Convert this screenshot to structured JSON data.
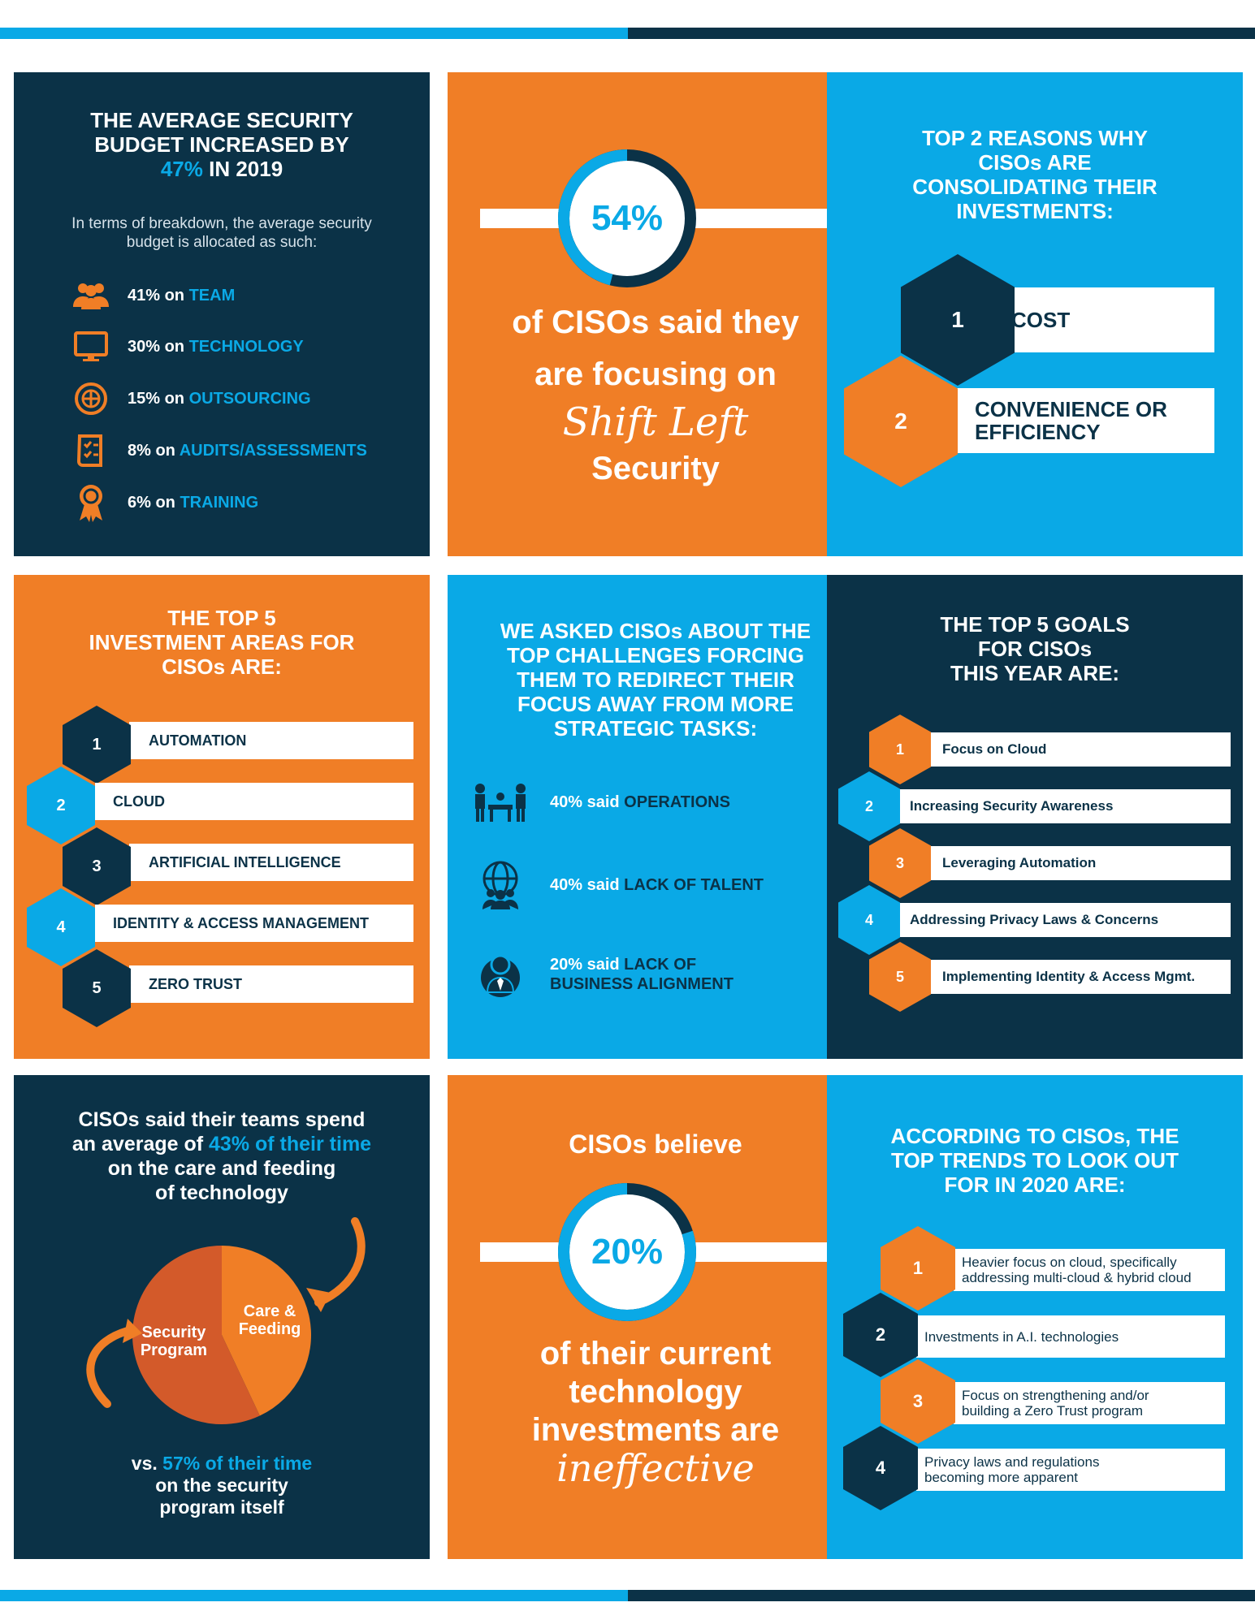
{
  "colors": {
    "navy": "#0b3247",
    "orange": "#f07e26",
    "blue": "#0aa9e6",
    "white": "#ffffff"
  },
  "budget": {
    "title_line1": "THE AVERAGE SECURITY",
    "title_line2": "BUDGET INCREASED BY",
    "title_pct": "47%",
    "title_year": "IN 2019",
    "subtitle": "In terms of breakdown, the average security budget is allocated as such:",
    "items": [
      {
        "icon": "team-icon",
        "pct": "41% on",
        "label": "TEAM"
      },
      {
        "icon": "monitor-icon",
        "pct": "30% on",
        "label": "TECHNOLOGY"
      },
      {
        "icon": "globe-outsourcing-icon",
        "pct": "15% on",
        "label": "OUTSOURCING"
      },
      {
        "icon": "checklist-icon",
        "pct": "8% on",
        "label": "AUDITS/ASSESSMENTS"
      },
      {
        "icon": "award-ribbon-icon",
        "pct": "6% on",
        "label": "TRAINING"
      }
    ]
  },
  "shift_left": {
    "value": 54,
    "stat": "54%",
    "line1": "of CISOs said they",
    "line2": "are focusing on",
    "script": "Shift Left",
    "line3": "Security"
  },
  "reasons": {
    "title": [
      "TOP 2 REASONS WHY",
      "CISOs ARE",
      "CONSOLIDATING THEIR",
      "INVESTMENTS:"
    ],
    "items": [
      {
        "num": "1",
        "label": "COST"
      },
      {
        "num": "2",
        "label_line1": "CONVENIENCE OR",
        "label_line2": "EFFICIENCY"
      }
    ]
  },
  "investment": {
    "title": [
      "THE TOP 5",
      "INVESTMENT AREAS FOR",
      "CISOs ARE:"
    ],
    "items": [
      {
        "num": "1",
        "label": "AUTOMATION"
      },
      {
        "num": "2",
        "label": "CLOUD"
      },
      {
        "num": "3",
        "label": "ARTIFICIAL INTELLIGENCE"
      },
      {
        "num": "4",
        "label": "IDENTITY & ACCESS MANAGEMENT"
      },
      {
        "num": "5",
        "label": "ZERO TRUST"
      }
    ]
  },
  "challenges": {
    "title": [
      "WE ASKED CISOs ABOUT THE",
      "TOP CHALLENGES FORCING",
      "THEM TO REDIRECT THEIR",
      "FOCUS AWAY FROM MORE",
      "STRATEGIC TASKS:"
    ],
    "items": [
      {
        "icon": "meeting-icon",
        "pct": "40% said",
        "label": "OPERATIONS"
      },
      {
        "icon": "global-team-icon",
        "pct": "40% said",
        "label": "LACK OF TALENT"
      },
      {
        "icon": "businessman-icon",
        "pct": "20% said",
        "label": "LACK OF",
        "label2": "BUSINESS ALIGNMENT"
      }
    ]
  },
  "goals": {
    "title": [
      "THE TOP 5 GOALS",
      "FOR CISOs",
      "THIS YEAR ARE:"
    ],
    "items": [
      {
        "num": "1",
        "label": "Focus on Cloud"
      },
      {
        "num": "2",
        "label": "Increasing Security Awareness"
      },
      {
        "num": "3",
        "label": "Leveraging Automation"
      },
      {
        "num": "4",
        "label": "Addressing Privacy Laws & Concerns"
      },
      {
        "num": "5",
        "label": "Implementing Identity & Access Mgmt."
      }
    ]
  },
  "time": {
    "title_line1": "CISOs said their teams spend",
    "title_line2_pre": "an average of",
    "title_line2_hl": "43% of their time",
    "title_line3": "on the care and feeding",
    "title_line4": "of technology",
    "bottom_pre": "vs.",
    "bottom_hl": "57% of their time",
    "bottom_line2": "on the security",
    "bottom_line3": "program itself",
    "chart_data": {
      "type": "pie",
      "categories": [
        "Care & Feeding",
        "Security Program"
      ],
      "values": [
        43,
        57
      ],
      "colors": [
        "#f07e26",
        "#d35a2a"
      ],
      "title": "",
      "xlabel": "",
      "ylabel": ""
    }
  },
  "ineffective": {
    "value": 20,
    "top": "CISOs believe",
    "stat": "20%",
    "line1": "of their current",
    "line2": "technology",
    "line3": "investments are",
    "script": "ineffective"
  },
  "trends": {
    "title": [
      "ACCORDING TO CISOs, THE",
      "TOP TRENDS TO LOOK OUT",
      "FOR IN 2020 ARE:"
    ],
    "items": [
      {
        "num": "1",
        "line1": "Heavier focus on cloud, specifically",
        "line2": "addressing multi-cloud & hybrid cloud"
      },
      {
        "num": "2",
        "line1": "Investments in A.I. technologies",
        "line2": ""
      },
      {
        "num": "3",
        "line1": "Focus on strengthening and/or",
        "line2": "building a Zero Trust program"
      },
      {
        "num": "4",
        "line1": "Privacy laws and regulations",
        "line2": "becoming more apparent"
      }
    ]
  }
}
